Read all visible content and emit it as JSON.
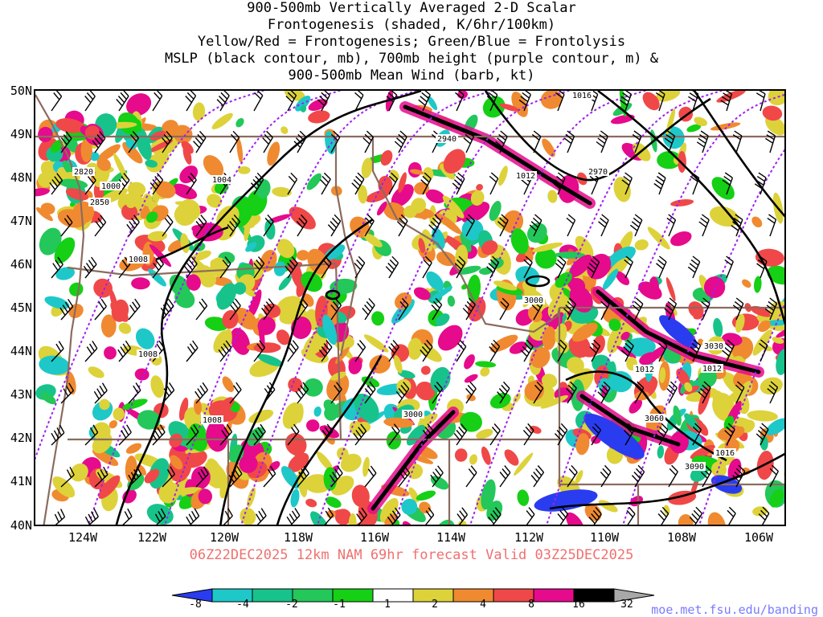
{
  "title_lines": [
    "900-500mb Vertically Averaged 2-D Scalar",
    "Frontogenesis (shaded, K/6hr/100km)",
    "Yellow/Red = Frontogenesis;  Green/Blue = Frontolysis",
    "MSLP (black contour, mb), 700mb height (purple contour, m) &",
    "900-500mb Mean Wind (barb, kt)"
  ],
  "subtitle": "06Z22DEC2025 12km NAM 69hr forecast Valid 03Z25DEC2025",
  "credit": "moe.met.fsu.edu/banding",
  "lat_labels": [
    "50N",
    "49N",
    "48N",
    "47N",
    "46N",
    "45N",
    "44N",
    "43N",
    "42N",
    "41N",
    "40N"
  ],
  "lon_labels": [
    "124W",
    "122W",
    "120W",
    "118W",
    "116W",
    "114W",
    "112W",
    "110W",
    "108W",
    "106W"
  ],
  "contour_labels": {
    "mslp": [
      "1016",
      "1012",
      "1004",
      "1000",
      "1008",
      "1008",
      "1008",
      "1012",
      "1012",
      "1016"
    ],
    "height": [
      "2940",
      "2970",
      "2820",
      "2850",
      "3000",
      "3000",
      "3030",
      "3060",
      "3090"
    ]
  },
  "colorbar": {
    "labels": [
      "-8",
      "-4",
      "-2",
      "-1",
      "1",
      "2",
      "4",
      "8",
      "16",
      "32"
    ],
    "colors": [
      "#2a3cf0",
      "#1ec8c8",
      "#17c38a",
      "#23c75a",
      "#15d015",
      "#ffffff",
      "#ddd23a",
      "#f08a30",
      "#f04848",
      "#e60a8c",
      "#000000",
      "#a8a8a8"
    ]
  },
  "colors": {
    "state_lines": "#8b6b5e",
    "mslp": "#000000",
    "height": "#a020f0",
    "subtitle": "#f07070",
    "credit": "#7a7aff"
  }
}
